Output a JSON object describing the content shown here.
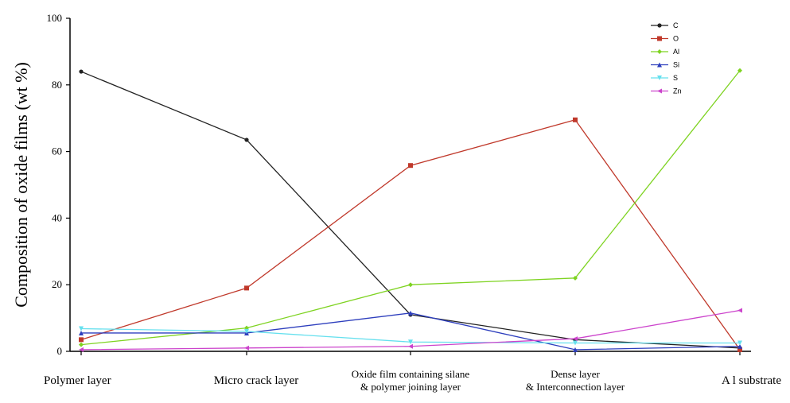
{
  "chart_data": {
    "type": "line",
    "title": "",
    "xlabel": "",
    "ylabel": "Composition of oxide films (wt %)",
    "ylim": [
      0,
      100
    ],
    "yticks": [
      "0",
      "20",
      "40",
      "60",
      "80",
      "100"
    ],
    "categories": [
      [
        "Polymer layer"
      ],
      [
        "Micro crack layer"
      ],
      [
        "Oxide film containing silane",
        "& polymer joining layer"
      ],
      [
        "Dense layer",
        "& Interconnection layer"
      ],
      [
        "A l substrate"
      ]
    ],
    "legend_position": "top-right",
    "grid": false,
    "series": [
      {
        "name": "C",
        "color": "#222222",
        "marker": "circle",
        "values": [
          84,
          63.5,
          11,
          3.5,
          1
        ]
      },
      {
        "name": "O",
        "color": "#c0392b",
        "marker": "square",
        "values": [
          3.5,
          19,
          55.8,
          69.5,
          0.5
        ]
      },
      {
        "name": "Al",
        "color": "#7ed321",
        "marker": "diamond",
        "values": [
          2,
          7,
          20,
          22,
          84.3
        ]
      },
      {
        "name": "Si",
        "color": "#2d3ebd",
        "marker": "triangle",
        "values": [
          5.5,
          5.5,
          11.5,
          0.5,
          1.5
        ]
      },
      {
        "name": "S",
        "color": "#66e0ee",
        "marker": "tri-down",
        "values": [
          6.8,
          6,
          2.8,
          2.5,
          2.5
        ]
      },
      {
        "name": "Zn",
        "color": "#cc44cc",
        "marker": "tri-left",
        "values": [
          0.5,
          1,
          1.5,
          3.8,
          12.3
        ]
      }
    ]
  }
}
